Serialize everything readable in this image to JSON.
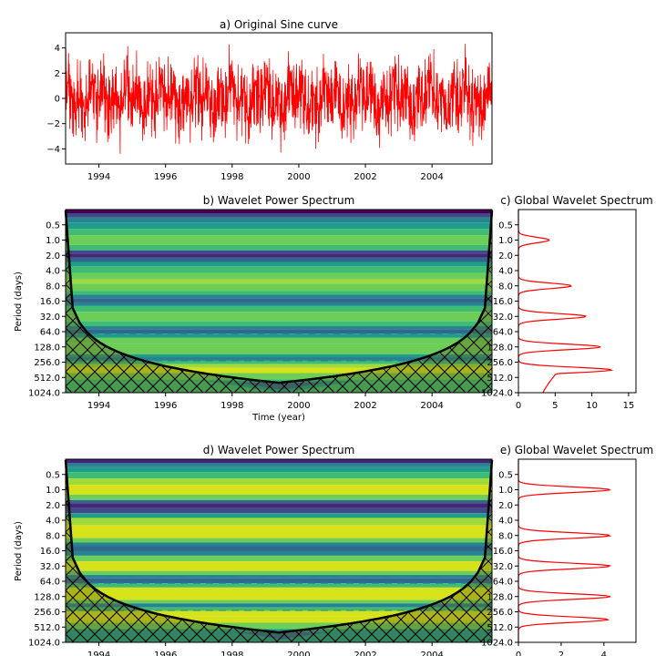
{
  "chart_data": [
    {
      "type": "line",
      "title": "a) Original Sine curve",
      "xlabel": "",
      "ylabel": "",
      "xlim": [
        1993.0,
        2005.8
      ],
      "ylim": [
        -5.2,
        5.2
      ],
      "xticks": [
        1994,
        1996,
        1998,
        2000,
        2002,
        2004
      ],
      "yticks": [
        4,
        2,
        0,
        -2,
        -4
      ],
      "ytick_labels": [
        "4",
        "2",
        "0",
        "−2",
        "−4"
      ],
      "line_color": "#ff0000",
      "series": [
        {
          "description": "daily signal sampled 1993–2005.8",
          "amplitude_range": [
            -4.8,
            4.8
          ]
        }
      ]
    },
    {
      "type": "heatmap",
      "title": "b) Wavelet Power Spectrum",
      "xlabel": "Time (year)",
      "ylabel": "Period (days)",
      "xlim": [
        1993.0,
        2005.8
      ],
      "xticks": [
        1994,
        1996,
        1998,
        2000,
        2002,
        2004
      ],
      "y_scale": "log2",
      "ylim": [
        0.25,
        1024
      ],
      "yticks": [
        "0.5",
        "1.0",
        "2.0",
        "4.0",
        "8.0",
        "16.0",
        "32.0",
        "64.0",
        "128.0",
        "256.0",
        "512.0",
        "1024.0"
      ],
      "colormap": "viridis",
      "cone_of_influence": true,
      "hatch_outside_coi": true
    },
    {
      "type": "line",
      "title": "c) Global Wavelet Spectrum",
      "xlabel": "",
      "xlim": [
        0,
        16
      ],
      "xticks": [
        0,
        5,
        10,
        15
      ],
      "y_scale": "log2",
      "ylim": [
        0.25,
        1024
      ],
      "yticks": [
        "0.5",
        "1.0",
        "2.0",
        "4.0",
        "8.0",
        "16.0",
        "32.0",
        "64.0",
        "128.0",
        "256.0",
        "512.0",
        "1024.0"
      ],
      "peaks": [
        {
          "period": 1,
          "power": 4.2
        },
        {
          "period": 8,
          "power": 7.2
        },
        {
          "period": 32,
          "power": 9.2
        },
        {
          "period": 128,
          "power": 11.2
        },
        {
          "period": 365,
          "power": 12.7
        }
      ],
      "line_color": "#ff0000"
    },
    {
      "type": "heatmap",
      "title": "d) Wavelet Power Spectrum",
      "xlabel": "",
      "ylabel": "Period (days)",
      "xlim": [
        1993.0,
        2005.8
      ],
      "xticks": [
        1994,
        1996,
        1998,
        2000,
        2002,
        2004
      ],
      "y_scale": "log2",
      "ylim": [
        0.25,
        1024
      ],
      "yticks": [
        "0.5",
        "1.0",
        "2.0",
        "4.0",
        "8.0",
        "16.0",
        "32.0",
        "64.0",
        "128.0",
        "256.0",
        "512.0",
        "1024.0"
      ],
      "colormap": "viridis",
      "cone_of_influence": true,
      "hatch_outside_coi": true
    },
    {
      "type": "line",
      "title": "e) Global Wavelet Spectrum",
      "xlabel": "",
      "xlim": [
        0,
        5.5
      ],
      "xticks": [
        0,
        2,
        4
      ],
      "y_scale": "log2",
      "ylim": [
        0.25,
        1024
      ],
      "yticks": [
        "0.5",
        "1.0",
        "2.0",
        "4.0",
        "8.0",
        "16.0",
        "32.0",
        "64.0",
        "128.0",
        "256.0",
        "512.0",
        "1024.0"
      ],
      "peaks": [
        {
          "period": 1,
          "power": 4.3
        },
        {
          "period": 8,
          "power": 4.3
        },
        {
          "period": 32,
          "power": 4.3
        },
        {
          "period": 128,
          "power": 4.3
        },
        {
          "period": 365,
          "power": 4.2
        }
      ],
      "line_color": "#ff0000"
    }
  ]
}
